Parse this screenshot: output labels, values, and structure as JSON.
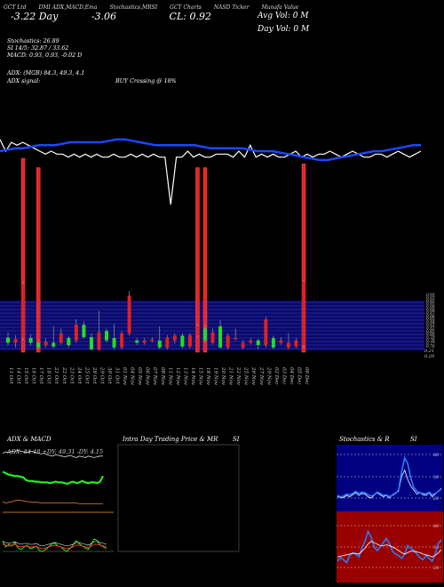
{
  "header": {
    "items": [
      "GCT Ltd",
      "DMI ADX,MACD,Ema",
      "Stochastics,MRSI",
      "GCT Charts",
      "NASD Ticker",
      "Munafa Value"
    ],
    "price_change": "-3.22 Day",
    "price_pct": "-3.06",
    "close": "CL: 0.92",
    "avg_vol": "Avg Vol: 0  M",
    "day_vol": "Day Vol: 0  M"
  },
  "indicators": {
    "stochastics": "Stochastics: 26.89",
    "si": "SI 14/5: 32.87 / 33.62",
    "macd": "MACD: 0.93,  0.93,  -0.02  D",
    "adx": "ADX:                    (MGB) 84.3,  49.3,  4.1",
    "adx_signal": "ADX  signal:",
    "buy": "BUY Crossing @ 18%"
  },
  "price_axis": [
    "0.95",
    "0.93",
    "0.92",
    "0.91",
    "0.90",
    "0.88",
    "0.87",
    "0.86",
    "0.85",
    "0.84",
    "0.83",
    "0.82",
    "0.81",
    "0.80",
    "0.79",
    "0.78",
    "0.77",
    "0.76"
  ],
  "price_axis_bottom": [
    "0.21",
    "0.20"
  ],
  "panels": {
    "adx_title": "ADX  & MACD",
    "adx_overlay": "ADX: 84.48   +DY: 49.31 -DY: 4.15",
    "intra_title": "Intra  Day Trading Price  & MR",
    "intra_title2": "SI",
    "stoch_title": "Stochastics & R",
    "stoch_title2": "SI",
    "stoch_ticks": [
      "80",
      "50",
      "20"
    ],
    "rsi_ticks": [
      "80",
      "50",
      "20"
    ]
  },
  "colors": {
    "bull": "#22dd22",
    "bear": "#e02020",
    "ema": "#1a48ff",
    "band": "#0a0a66"
  },
  "chart_data": [
    {
      "type": "candlestick",
      "title": "",
      "dates": [
        "11 Oct",
        "14 Oct",
        "15 Oct",
        "16 Oct",
        "17 Oct",
        "18 Oct",
        "21 Oct",
        "22 Oct",
        "23 Oct",
        "24 Oct",
        "25 Oct",
        "28 Oct",
        "29 Oct",
        "30 Oct",
        "31 Oct",
        "01 Nov",
        "04 Nov",
        "05 Nov",
        "06 Nov",
        "07 Nov",
        "08 Nov",
        "11 Nov",
        "12 Nov",
        "13 Nov",
        "14 Nov",
        "15 Nov",
        "18 Nov",
        "19 Nov",
        "20 Nov",
        "21 Nov",
        "22 Nov",
        "25 Nov",
        "26 Nov",
        "27 Nov",
        "29 Nov",
        "02 Dec",
        "03 Dec",
        "04 Dec",
        "05 Dec",
        "06 Dec"
      ],
      "candles": [
        {
          "o": 0.781,
          "c": 0.77,
          "h": 0.792,
          "l": 0.764
        },
        {
          "o": 0.77,
          "c": 0.778,
          "h": 0.786,
          "l": 0.76
        },
        {
          "o": 0.78,
          "c": 0.895,
          "h": 0.9,
          "l": 0.775
        },
        {
          "o": 0.78,
          "c": 0.77,
          "h": 0.788,
          "l": 0.764
        },
        {
          "o": 0.77,
          "c": 0.76,
          "h": 0.778,
          "l": 0.755
        },
        {
          "o": 0.765,
          "c": 0.772,
          "h": 0.78,
          "l": 0.76
        },
        {
          "o": 0.77,
          "c": 0.762,
          "h": 0.805,
          "l": 0.758
        },
        {
          "o": 0.77,
          "c": 0.79,
          "h": 0.8,
          "l": 0.766
        },
        {
          "o": 0.78,
          "c": 0.765,
          "h": 0.785,
          "l": 0.76
        },
        {
          "o": 0.775,
          "c": 0.808,
          "h": 0.82,
          "l": 0.77
        },
        {
          "o": 0.808,
          "c": 0.782,
          "h": 0.815,
          "l": 0.778
        },
        {
          "o": 0.782,
          "c": 0.756,
          "h": 0.79,
          "l": 0.754
        },
        {
          "o": 0.756,
          "c": 0.792,
          "h": 0.838,
          "l": 0.752
        },
        {
          "o": 0.795,
          "c": 0.775,
          "h": 0.8,
          "l": 0.77
        },
        {
          "o": 0.78,
          "c": 0.76,
          "h": 0.81,
          "l": 0.755
        },
        {
          "o": 0.76,
          "c": 0.79,
          "h": 0.795,
          "l": 0.756
        },
        {
          "o": 0.79,
          "c": 0.87,
          "h": 0.88,
          "l": 0.785
        },
        {
          "o": 0.775,
          "c": 0.77,
          "h": 0.78,
          "l": 0.765
        },
        {
          "o": 0.77,
          "c": 0.775,
          "h": 0.78,
          "l": 0.766
        },
        {
          "o": 0.775,
          "c": 0.777,
          "h": 0.782,
          "l": 0.77
        },
        {
          "o": 0.775,
          "c": 0.76,
          "h": 0.805,
          "l": 0.756
        },
        {
          "o": 0.76,
          "c": 0.781,
          "h": 0.786,
          "l": 0.756
        },
        {
          "o": 0.775,
          "c": 0.785,
          "h": 0.79,
          "l": 0.768
        },
        {
          "o": 0.785,
          "c": 0.762,
          "h": 0.79,
          "l": 0.758
        },
        {
          "o": 0.762,
          "c": 0.786,
          "h": 0.79,
          "l": 0.758
        },
        {
          "o": 0.786,
          "c": 0.805,
          "h": 0.81,
          "l": 0.782
        },
        {
          "o": 0.8,
          "c": 0.775,
          "h": 0.808,
          "l": 0.77
        },
        {
          "o": 0.77,
          "c": 0.792,
          "h": 0.8,
          "l": 0.766
        },
        {
          "o": 0.805,
          "c": 0.76,
          "h": 0.818,
          "l": 0.758
        },
        {
          "o": 0.76,
          "c": 0.785,
          "h": 0.79,
          "l": 0.756
        },
        {
          "o": 0.78,
          "c": 0.78,
          "h": 0.8,
          "l": 0.776
        },
        {
          "o": 0.76,
          "c": 0.77,
          "h": 0.776,
          "l": 0.756
        },
        {
          "o": 0.77,
          "c": 0.775,
          "h": 0.78,
          "l": 0.766
        },
        {
          "o": 0.775,
          "c": 0.765,
          "h": 0.778,
          "l": 0.756
        },
        {
          "o": 0.765,
          "c": 0.82,
          "h": 0.825,
          "l": 0.76
        },
        {
          "o": 0.78,
          "c": 0.76,
          "h": 0.785,
          "l": 0.756
        },
        {
          "o": 0.77,
          "c": 0.775,
          "h": 0.782,
          "l": 0.766
        },
        {
          "o": 0.76,
          "c": 0.77,
          "h": 0.79,
          "l": 0.756
        },
        {
          "o": 0.762,
          "c": 0.775,
          "h": 0.78,
          "l": 0.758
        },
        {
          "o": 0.765,
          "c": 0.9,
          "h": 0.905,
          "l": 0.76
        }
      ],
      "volume_spikes": [
        {
          "index": 2,
          "v": 1.0
        },
        {
          "index": 4,
          "v": 0.95
        },
        {
          "index": 25,
          "v": 0.95
        },
        {
          "index": 26,
          "v": 0.95
        },
        {
          "index": 39,
          "v": 0.97
        }
      ],
      "line_a": [
        0.62,
        0.58,
        0.61,
        0.6,
        0.61,
        0.6,
        0.59,
        0.58,
        0.57,
        0.58,
        0.57,
        0.57,
        0.56,
        0.57,
        0.56,
        0.57,
        0.56,
        0.57,
        0.56,
        0.56,
        0.57,
        0.56,
        0.56,
        0.57,
        0.56,
        0.57,
        0.56,
        0.57,
        0.56,
        0.56,
        0.4,
        0.56,
        0.56,
        0.58,
        0.56,
        0.57,
        0.56,
        0.56,
        0.57,
        0.57,
        0.57,
        0.56,
        0.58,
        0.56,
        0.6,
        0.56,
        0.57,
        0.56,
        0.57,
        0.56,
        0.56,
        0.57,
        0.58,
        0.56,
        0.57,
        0.56,
        0.57,
        0.57,
        0.58,
        0.57,
        0.56,
        0.57,
        0.58,
        0.57,
        0.56,
        0.56,
        0.57,
        0.57,
        0.56,
        0.57,
        0.58,
        0.57,
        0.56,
        0.57,
        0.58
      ],
      "line_b": [
        0.58,
        0.585,
        0.59,
        0.59,
        0.595,
        0.6,
        0.6,
        0.6,
        0.605,
        0.61,
        0.61,
        0.61,
        0.61,
        0.61,
        0.615,
        0.62,
        0.62,
        0.615,
        0.61,
        0.605,
        0.6,
        0.6,
        0.6,
        0.6,
        0.6,
        0.6,
        0.595,
        0.59,
        0.59,
        0.59,
        0.59,
        0.59,
        0.585,
        0.58,
        0.58,
        0.58,
        0.575,
        0.57,
        0.565,
        0.56,
        0.555,
        0.55,
        0.55,
        0.555,
        0.56,
        0.565,
        0.57,
        0.575,
        0.58,
        0.58,
        0.585,
        0.59,
        0.595,
        0.6,
        0.6
      ]
    },
    {
      "type": "line",
      "title": "",
      "series": [
        {
          "values": [
            62,
            60,
            58,
            57,
            56,
            56,
            55,
            54,
            50,
            49,
            49,
            48,
            48,
            47,
            47,
            47,
            46,
            47,
            48,
            47,
            47,
            46,
            45,
            47,
            48,
            46,
            47,
            49,
            47,
            46,
            47,
            47,
            46,
            48,
            56
          ]
        },
        {
          "values": [
            20,
            18,
            19,
            20,
            21,
            22,
            22,
            21,
            20,
            20,
            19,
            19,
            19,
            18,
            18,
            18,
            18,
            18,
            18,
            18,
            18,
            18,
            18,
            18,
            18,
            18,
            17,
            17,
            17,
            17,
            17,
            17,
            17,
            17,
            17
          ]
        },
        {
          "values": [
            88,
            90,
            89,
            91,
            90,
            92,
            91,
            90,
            89,
            90,
            91,
            89,
            88,
            87,
            88,
            86,
            85,
            84,
            86,
            85,
            84,
            83,
            84,
            85,
            83,
            82,
            84,
            83,
            82,
            84,
            83,
            82,
            83,
            84,
            84
          ]
        }
      ],
      "ylim": [
        0,
        100
      ]
    },
    {
      "type": "line",
      "title": "",
      "series": [
        {
          "values": [
            62,
            55,
            58,
            56,
            60,
            54,
            52,
            55,
            57,
            53,
            54,
            56,
            51,
            50,
            52,
            55,
            58,
            60,
            56,
            55,
            52,
            50,
            53,
            57,
            62,
            59,
            56,
            54,
            52,
            58,
            64,
            62,
            57,
            55,
            53
          ]
        },
        {
          "values": [
            58,
            57,
            56,
            57,
            58,
            56,
            55,
            56,
            56,
            55,
            55,
            56,
            54,
            53,
            54,
            55,
            56,
            57,
            56,
            55,
            54,
            53,
            54,
            55,
            57,
            57,
            56,
            55,
            54,
            56,
            58,
            58,
            57,
            56,
            55
          ]
        }
      ],
      "ylim": [
        0,
        100
      ]
    },
    {
      "type": "line",
      "title": "",
      "series": [
        {
          "values": [
            22,
            21,
            21,
            24,
            22,
            25,
            28,
            24,
            27,
            26,
            22,
            20,
            24,
            28,
            25,
            22,
            24,
            20,
            25,
            28,
            30,
            52,
            62,
            48,
            38,
            32,
            26,
            28,
            25,
            24,
            28,
            22,
            26,
            30,
            35
          ]
        },
        {
          "values": [
            24,
            22,
            23,
            26,
            25,
            27,
            30,
            27,
            29,
            28,
            25,
            23,
            25,
            29,
            27,
            24,
            25,
            22,
            24,
            27,
            32,
            60,
            80,
            72,
            50,
            36,
            30,
            28,
            27,
            26,
            29,
            25,
            27,
            30,
            34
          ]
        }
      ],
      "ylim": [
        0,
        100
      ]
    },
    {
      "type": "line",
      "title": "",
      "series": [
        {
          "values": [
            30,
            35,
            32,
            28,
            38,
            42,
            40,
            36,
            48,
            58,
            72,
            64,
            50,
            45,
            50,
            56,
            62,
            55,
            44,
            40,
            38,
            34,
            40,
            52,
            48,
            45,
            40,
            35,
            32,
            38,
            34,
            30,
            40,
            55,
            60
          ]
        },
        {
          "values": [
            36,
            37,
            38,
            39,
            40,
            41,
            41,
            40,
            44,
            48,
            54,
            58,
            56,
            54,
            52,
            52,
            53,
            52,
            50,
            48,
            45,
            42,
            40,
            42,
            44,
            44,
            43,
            42,
            40,
            39,
            38,
            36,
            38,
            42,
            46
          ]
        }
      ],
      "ylim": [
        0,
        100
      ]
    }
  ]
}
